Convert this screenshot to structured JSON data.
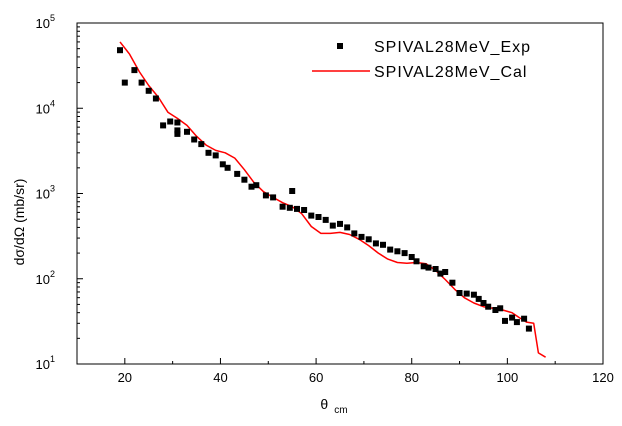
{
  "chart_data": {
    "type": "scatter",
    "xlabel": "θ",
    "xlabel_sub": "cm",
    "ylabel": "dσ/dΩ (mb/sr)",
    "xlim": [
      10,
      120
    ],
    "ylim": [
      10,
      100000
    ],
    "yscale": "log",
    "grid": false,
    "legend_position": "top-right",
    "x_ticks": [
      {
        "value": 20,
        "label": "20"
      },
      {
        "value": 40,
        "label": "40"
      },
      {
        "value": 60,
        "label": "60"
      },
      {
        "value": 80,
        "label": "80"
      },
      {
        "value": 100,
        "label": "100"
      },
      {
        "value": 120,
        "label": "120"
      }
    ],
    "y_ticks": [
      {
        "value": 10,
        "base": "10",
        "exp": "1"
      },
      {
        "value": 100,
        "base": "10",
        "exp": "2"
      },
      {
        "value": 1000,
        "base": "10",
        "exp": "3"
      },
      {
        "value": 10000,
        "base": "10",
        "exp": "4"
      },
      {
        "value": 100000,
        "base": "10",
        "exp": "5"
      }
    ],
    "series": [
      {
        "name": "SPIVAL28MeV_Exp",
        "style": "markers",
        "color": "#000000",
        "points": [
          [
            19.0,
            48000
          ],
          [
            20.0,
            20000
          ],
          [
            22.0,
            28000
          ],
          [
            23.5,
            20000
          ],
          [
            25.0,
            16000
          ],
          [
            26.5,
            13000
          ],
          [
            28.0,
            6300
          ],
          [
            29.5,
            7000
          ],
          [
            31.0,
            6800
          ],
          [
            31.0,
            5500
          ],
          [
            31.0,
            5000
          ],
          [
            33.0,
            5300
          ],
          [
            34.5,
            4300
          ],
          [
            36.0,
            3800
          ],
          [
            37.5,
            3000
          ],
          [
            39.0,
            2800
          ],
          [
            40.5,
            2200
          ],
          [
            41.5,
            2000
          ],
          [
            43.5,
            1700
          ],
          [
            45.0,
            1450
          ],
          [
            46.5,
            1200
          ],
          [
            47.5,
            1250
          ],
          [
            49.5,
            950
          ],
          [
            51.0,
            900
          ],
          [
            53.0,
            700
          ],
          [
            54.5,
            680
          ],
          [
            55.0,
            1070
          ],
          [
            56.0,
            660
          ],
          [
            57.5,
            640
          ],
          [
            59.0,
            550
          ],
          [
            60.5,
            530
          ],
          [
            62.0,
            490
          ],
          [
            63.5,
            420
          ],
          [
            65.0,
            440
          ],
          [
            66.5,
            400
          ],
          [
            68.0,
            340
          ],
          [
            69.5,
            310
          ],
          [
            71.0,
            290
          ],
          [
            72.5,
            260
          ],
          [
            74.0,
            250
          ],
          [
            75.5,
            220
          ],
          [
            77.0,
            210
          ],
          [
            78.5,
            200
          ],
          [
            80.0,
            180
          ],
          [
            81.0,
            160
          ],
          [
            82.5,
            140
          ],
          [
            83.5,
            135
          ],
          [
            85.0,
            130
          ],
          [
            86.0,
            115
          ],
          [
            87.0,
            120
          ],
          [
            88.5,
            90
          ],
          [
            90.0,
            68
          ],
          [
            91.5,
            67
          ],
          [
            93.0,
            65
          ],
          [
            94.0,
            58
          ],
          [
            95.0,
            52
          ],
          [
            96.0,
            47
          ],
          [
            97.5,
            43
          ],
          [
            98.5,
            45
          ],
          [
            99.5,
            32
          ],
          [
            101.0,
            35
          ],
          [
            102.0,
            31
          ],
          [
            103.5,
            34
          ],
          [
            104.5,
            26
          ]
        ]
      },
      {
        "name": "SPIVAL28MeV_Cal",
        "style": "line",
        "color": "#ff0000",
        "points": [
          [
            19.0,
            60000
          ],
          [
            21.0,
            43000
          ],
          [
            23.0,
            27000
          ],
          [
            25.0,
            18500
          ],
          [
            27.0,
            13500
          ],
          [
            29.0,
            9000
          ],
          [
            31.0,
            7600
          ],
          [
            33.0,
            6300
          ],
          [
            35.0,
            4700
          ],
          [
            37.0,
            3700
          ],
          [
            39.0,
            3200
          ],
          [
            41.0,
            3000
          ],
          [
            43.0,
            2600
          ],
          [
            45.0,
            1900
          ],
          [
            47.0,
            1350
          ],
          [
            49.0,
            1050
          ],
          [
            51.0,
            900
          ],
          [
            53.0,
            780
          ],
          [
            55.0,
            700
          ],
          [
            57.0,
            580
          ],
          [
            59.0,
            410
          ],
          [
            61.0,
            340
          ],
          [
            63.0,
            340
          ],
          [
            65.0,
            350
          ],
          [
            67.0,
            330
          ],
          [
            69.0,
            290
          ],
          [
            71.0,
            245
          ],
          [
            73.0,
            200
          ],
          [
            75.0,
            170
          ],
          [
            77.0,
            155
          ],
          [
            79.0,
            152
          ],
          [
            81.0,
            155
          ],
          [
            83.0,
            150
          ],
          [
            85.0,
            125
          ],
          [
            87.0,
            98
          ],
          [
            89.0,
            75
          ],
          [
            91.0,
            60
          ],
          [
            93.0,
            52
          ],
          [
            95.0,
            47
          ],
          [
            97.0,
            45
          ],
          [
            99.0,
            43
          ],
          [
            101.0,
            40
          ],
          [
            102.5,
            35
          ],
          [
            104.0,
            31
          ],
          [
            105.5,
            30
          ],
          [
            106.5,
            13.5
          ],
          [
            108.0,
            12
          ]
        ]
      }
    ]
  }
}
